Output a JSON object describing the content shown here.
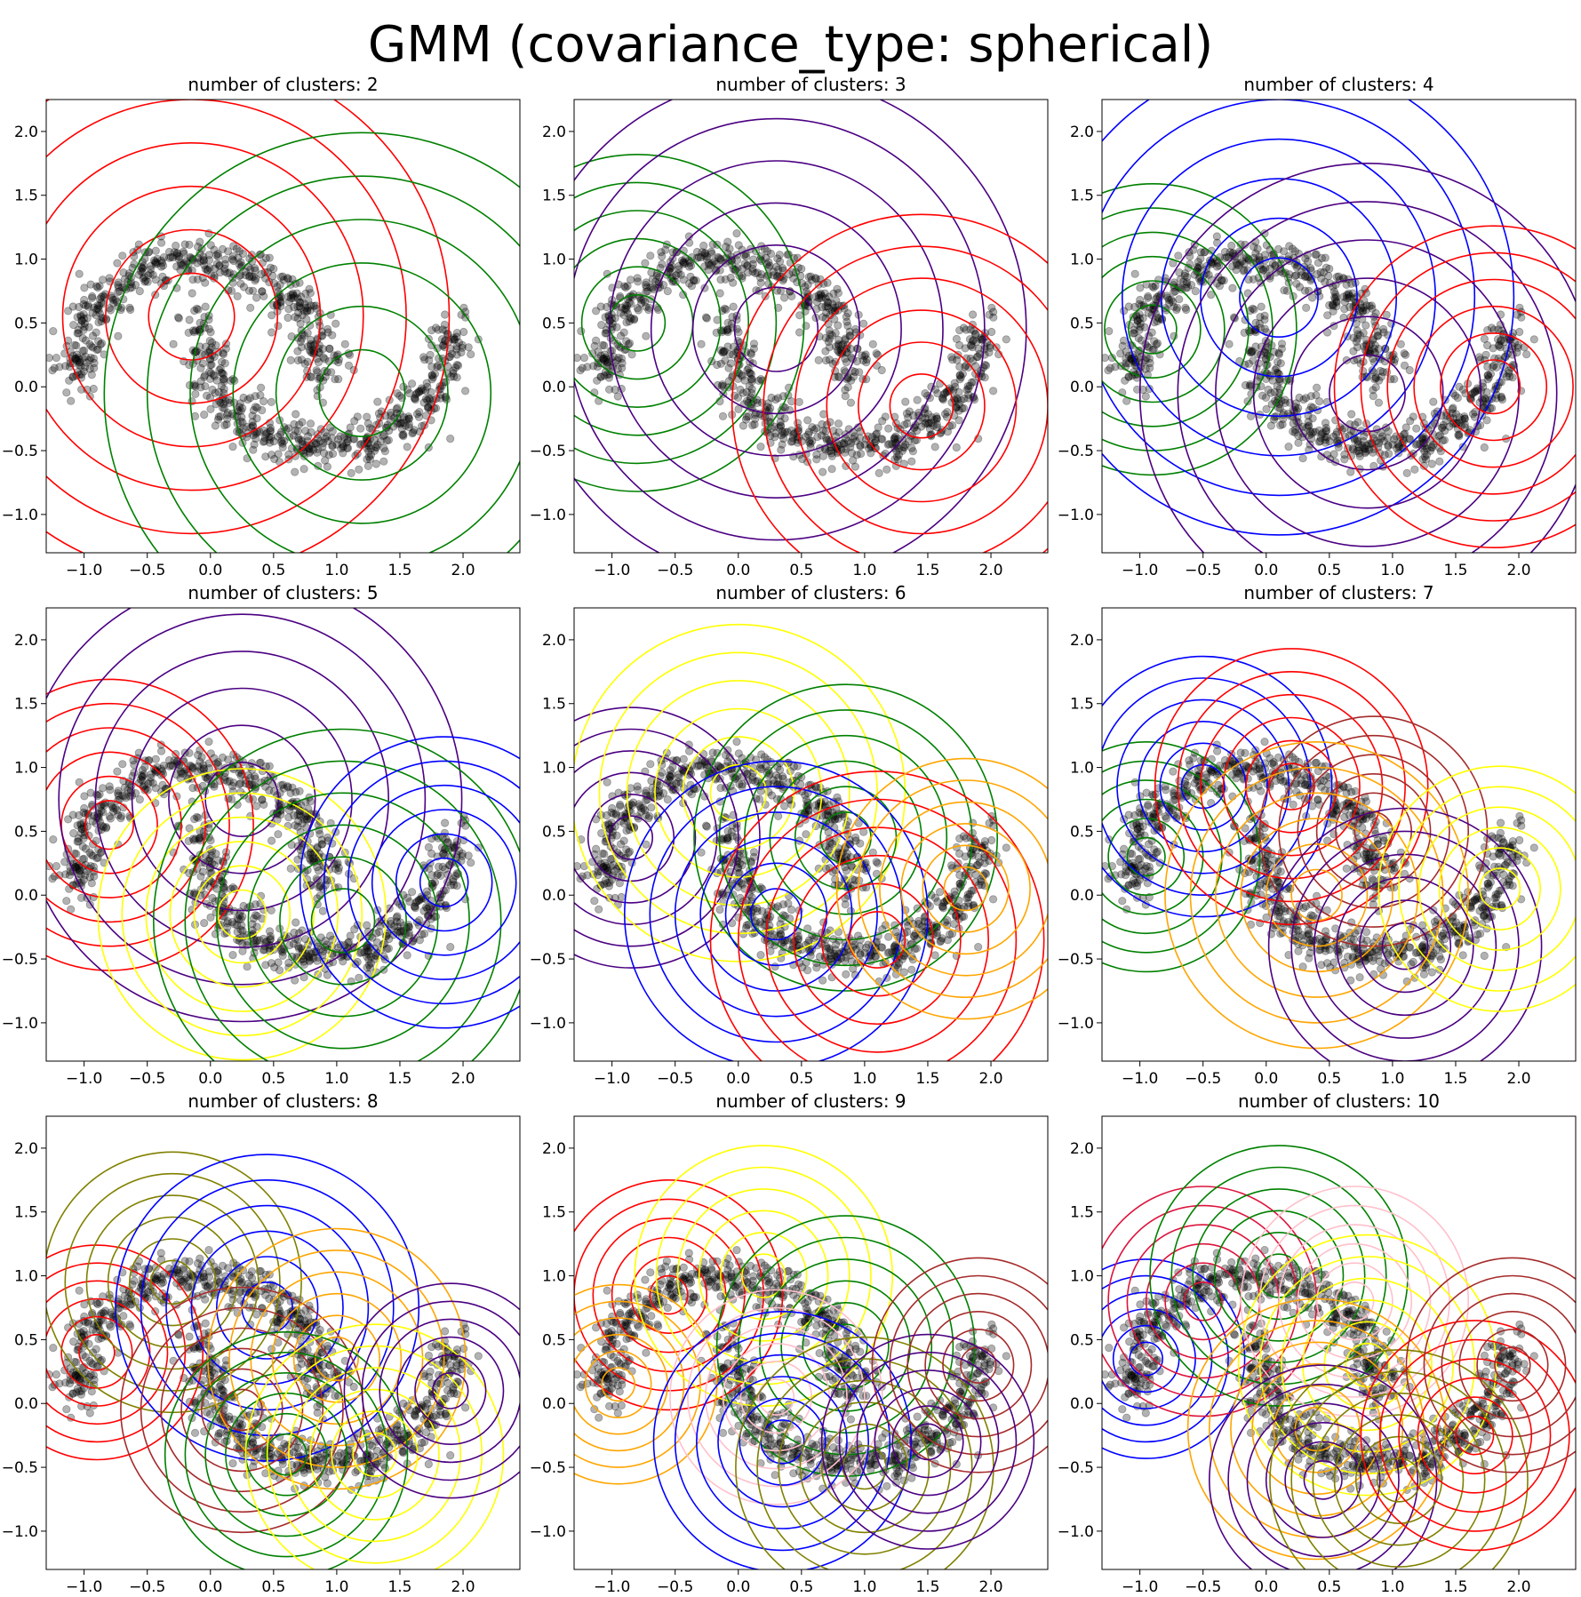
{
  "title": "GMM (covariance_type: spherical)",
  "chart_data": {
    "type": "scatter",
    "xlim": [
      -1.3,
      2.45
    ],
    "ylim": [
      -1.3,
      2.25
    ],
    "xticks": [
      -1.0,
      -0.5,
      0.0,
      0.5,
      1.0,
      1.5,
      2.0
    ],
    "yticks": [
      -1.0,
      -0.5,
      0.0,
      0.5,
      1.0,
      1.5,
      2.0
    ],
    "xtick_labels": [
      "−1.0",
      "−0.5",
      "0.0",
      "0.5",
      "1.0",
      "1.5",
      "2.0"
    ],
    "ytick_labels": [
      "−1.0",
      "−0.5",
      "0.0",
      "0.5",
      "1.0",
      "1.5",
      "2.0"
    ],
    "point_color": "#000000",
    "point_alpha": 0.3,
    "dataset": "two interleaving half-moon clusters (approx. 1000 noisy points)",
    "panels": [
      {
        "title": "number of clusters: 2",
        "components": [
          {
            "color": "#ff0000",
            "mean": [
              -0.15,
              0.55
            ],
            "radius": 0.34
          },
          {
            "color": "#008000",
            "mean": [
              1.2,
              -0.05
            ],
            "radius": 0.34
          }
        ]
      },
      {
        "title": "number of clusters: 3",
        "components": [
          {
            "color": "#008000",
            "mean": [
              -0.8,
              0.5
            ],
            "radius": 0.22
          },
          {
            "color": "#4b0082",
            "mean": [
              0.3,
              0.45
            ],
            "radius": 0.33
          },
          {
            "color": "#ff0000",
            "mean": [
              1.45,
              -0.15
            ],
            "radius": 0.25
          }
        ]
      },
      {
        "title": "number of clusters: 4",
        "components": [
          {
            "color": "#008000",
            "mean": [
              -0.9,
              0.45
            ],
            "radius": 0.19
          },
          {
            "color": "#0000ff",
            "mean": [
              0.1,
              0.7
            ],
            "radius": 0.31
          },
          {
            "color": "#4b0082",
            "mean": [
              0.8,
              -0.05
            ],
            "radius": 0.3
          },
          {
            "color": "#ff0000",
            "mean": [
              1.8,
              0.0
            ],
            "radius": 0.21
          }
        ]
      },
      {
        "title": "number of clusters: 5",
        "components": [
          {
            "color": "#ff0000",
            "mean": [
              -0.8,
              0.55
            ],
            "radius": 0.19
          },
          {
            "color": "#4b0082",
            "mean": [
              0.25,
              0.75
            ],
            "radius": 0.29
          },
          {
            "color": "#ffff00",
            "mean": [
              0.25,
              -0.15
            ],
            "radius": 0.19
          },
          {
            "color": "#008000",
            "mean": [
              1.05,
              -0.2
            ],
            "radius": 0.25
          },
          {
            "color": "#0000ff",
            "mean": [
              1.85,
              0.1
            ],
            "radius": 0.19
          }
        ]
      },
      {
        "title": "number of clusters: 6",
        "components": [
          {
            "color": "#4b0082",
            "mean": [
              -0.85,
              0.45
            ],
            "radius": 0.17
          },
          {
            "color": "#ffff00",
            "mean": [
              0.0,
              0.8
            ],
            "radius": 0.22
          },
          {
            "color": "#008000",
            "mean": [
              0.85,
              0.45
            ],
            "radius": 0.2
          },
          {
            "color": "#0000ff",
            "mean": [
              0.3,
              -0.15
            ],
            "radius": 0.2
          },
          {
            "color": "#ff0000",
            "mean": [
              1.1,
              -0.35
            ],
            "radius": 0.22
          },
          {
            "color": "#ffa500",
            "mean": [
              1.8,
              0.05
            ],
            "radius": 0.17
          }
        ]
      },
      {
        "title": "number of clusters: 7",
        "components": [
          {
            "color": "#008000",
            "mean": [
              -0.95,
              0.3
            ],
            "radius": 0.15
          },
          {
            "color": "#0000ff",
            "mean": [
              -0.5,
              0.85
            ],
            "radius": 0.17
          },
          {
            "color": "#ff0000",
            "mean": [
              0.2,
              0.85
            ],
            "radius": 0.18
          },
          {
            "color": "#a52a2a",
            "mean": [
              0.85,
              0.5
            ],
            "radius": 0.15
          },
          {
            "color": "#ffa500",
            "mean": [
              0.4,
              0.0
            ],
            "radius": 0.2
          },
          {
            "color": "#4b0082",
            "mean": [
              1.1,
              -0.4
            ],
            "radius": 0.18
          },
          {
            "color": "#ffff00",
            "mean": [
              1.85,
              0.05
            ],
            "radius": 0.16
          }
        ]
      },
      {
        "title": "number of clusters: 8",
        "components": [
          {
            "color": "#ff0000",
            "mean": [
              -0.9,
              0.4
            ],
            "radius": 0.14
          },
          {
            "color": "#808000",
            "mean": [
              -0.3,
              0.95
            ],
            "radius": 0.17
          },
          {
            "color": "#0000ff",
            "mean": [
              0.45,
              0.75
            ],
            "radius": 0.2
          },
          {
            "color": "#a52a2a",
            "mean": [
              0.25,
              -0.05
            ],
            "radius": 0.16
          },
          {
            "color": "#ffa500",
            "mean": [
              1.0,
              0.35
            ],
            "radius": 0.17
          },
          {
            "color": "#008000",
            "mean": [
              0.6,
              -0.4
            ],
            "radius": 0.16
          },
          {
            "color": "#ffff00",
            "mean": [
              1.3,
              -0.4
            ],
            "radius": 0.17
          },
          {
            "color": "#4b0082",
            "mean": [
              1.9,
              0.1
            ],
            "radius": 0.14
          }
        ]
      },
      {
        "title": "number of clusters: 9",
        "components": [
          {
            "color": "#ff0000",
            "mean": [
              -0.55,
              0.85
            ],
            "radius": 0.15
          },
          {
            "color": "#ffa500",
            "mean": [
              -0.95,
              0.15
            ],
            "radius": 0.13
          },
          {
            "color": "#ffff00",
            "mean": [
              0.2,
              1.0
            ],
            "radius": 0.17
          },
          {
            "color": "#008000",
            "mean": [
              0.85,
              0.45
            ],
            "radius": 0.17
          },
          {
            "color": "#ffc0cb",
            "mean": [
              0.3,
              0.05
            ],
            "radius": 0.14
          },
          {
            "color": "#0000ff",
            "mean": [
              0.35,
              -0.3
            ],
            "radius": 0.17
          },
          {
            "color": "#808000",
            "mean": [
              1.0,
              -0.5
            ],
            "radius": 0.17
          },
          {
            "color": "#a52a2a",
            "mean": [
              1.9,
              0.3
            ],
            "radius": 0.14
          },
          {
            "color": "#4b0082",
            "mean": [
              1.5,
              -0.3
            ],
            "radius": 0.14
          }
        ]
      },
      {
        "title": "number of clusters: 10",
        "components": [
          {
            "color": "#0000ff",
            "mean": [
              -0.95,
              0.35
            ],
            "radius": 0.13
          },
          {
            "color": "#dc143c",
            "mean": [
              -0.5,
              0.8
            ],
            "radius": 0.15
          },
          {
            "color": "#008000",
            "mean": [
              0.1,
              1.0
            ],
            "radius": 0.17
          },
          {
            "color": "#ffc0cb",
            "mean": [
              0.7,
              0.8
            ],
            "radius": 0.15
          },
          {
            "color": "#ffff00",
            "mean": [
              0.8,
              0.3
            ],
            "radius": 0.17
          },
          {
            "color": "#ffa500",
            "mean": [
              0.4,
              -0.2
            ],
            "radius": 0.17
          },
          {
            "color": "#4b0082",
            "mean": [
              0.45,
              -0.6
            ],
            "radius": 0.15
          },
          {
            "color": "#808000",
            "mean": [
              1.05,
              -0.6
            ],
            "radius": 0.17
          },
          {
            "color": "#ff0000",
            "mean": [
              1.65,
              -0.25
            ],
            "radius": 0.15
          },
          {
            "color": "#a52a2a",
            "mean": [
              1.95,
              0.3
            ],
            "radius": 0.14
          }
        ]
      }
    ]
  }
}
